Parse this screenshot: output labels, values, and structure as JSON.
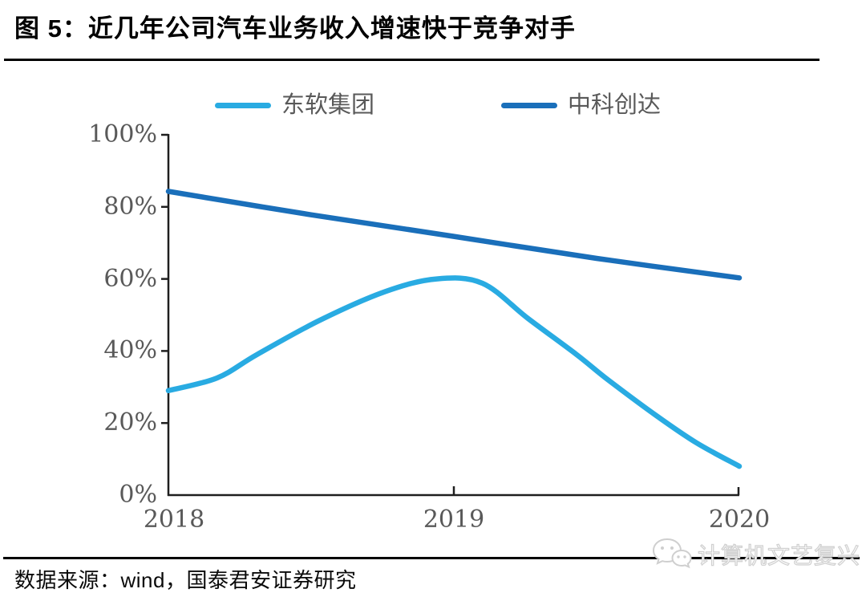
{
  "title": "图 5：近几年公司汽车业务收入增速快于竞争对手",
  "source_text": "数据来源：wind，国泰君安证券研究",
  "watermark": {
    "icon": "wechat-icon",
    "text": "计算机文艺复兴"
  },
  "colors": {
    "series_neusoft": "#29ABE2",
    "series_thundersoft": "#1A6FBA",
    "axis": "#1f1f1f",
    "tick_label": "#595959",
    "divider": "#000000",
    "watermark_outline": "#d0d0d0"
  },
  "chart_data": {
    "type": "line",
    "title": "图 5：近几年公司汽车业务收入增速快于竞争对手",
    "xlabel": "",
    "ylabel": "",
    "x_ticks": [
      "2018",
      "2019",
      "2020"
    ],
    "y_ticks": [
      "100%",
      "80%",
      "60%",
      "40%",
      "20%",
      "0%"
    ],
    "xlim": [
      2018,
      2020
    ],
    "ylim": [
      0,
      100
    ],
    "grid": false,
    "legend_position": "top",
    "series": [
      {
        "name": "东软集团",
        "color": "#29ABE2",
        "x": [
          2018,
          2018.17,
          2018.31,
          2018.53,
          2018.76,
          2018.94,
          2019.1,
          2019.26,
          2019.43,
          2019.54,
          2019.71,
          2019.85,
          2020
        ],
        "values": [
          29,
          32.5,
          39,
          48.5,
          56.5,
          60,
          58.8,
          49,
          39,
          32,
          22,
          14.5,
          8
        ],
        "key_points": {
          "2018": 29,
          "2019_peak": 60,
          "2020": 8
        }
      },
      {
        "name": "中科创达",
        "color": "#1A6FBA",
        "x": [
          2018,
          2018.5,
          2019,
          2019.5,
          2020
        ],
        "values": [
          84.3,
          77.8,
          71.8,
          65.7,
          60.3
        ],
        "key_points": {
          "2018": 84,
          "2019": 72,
          "2020": 60
        }
      }
    ]
  }
}
